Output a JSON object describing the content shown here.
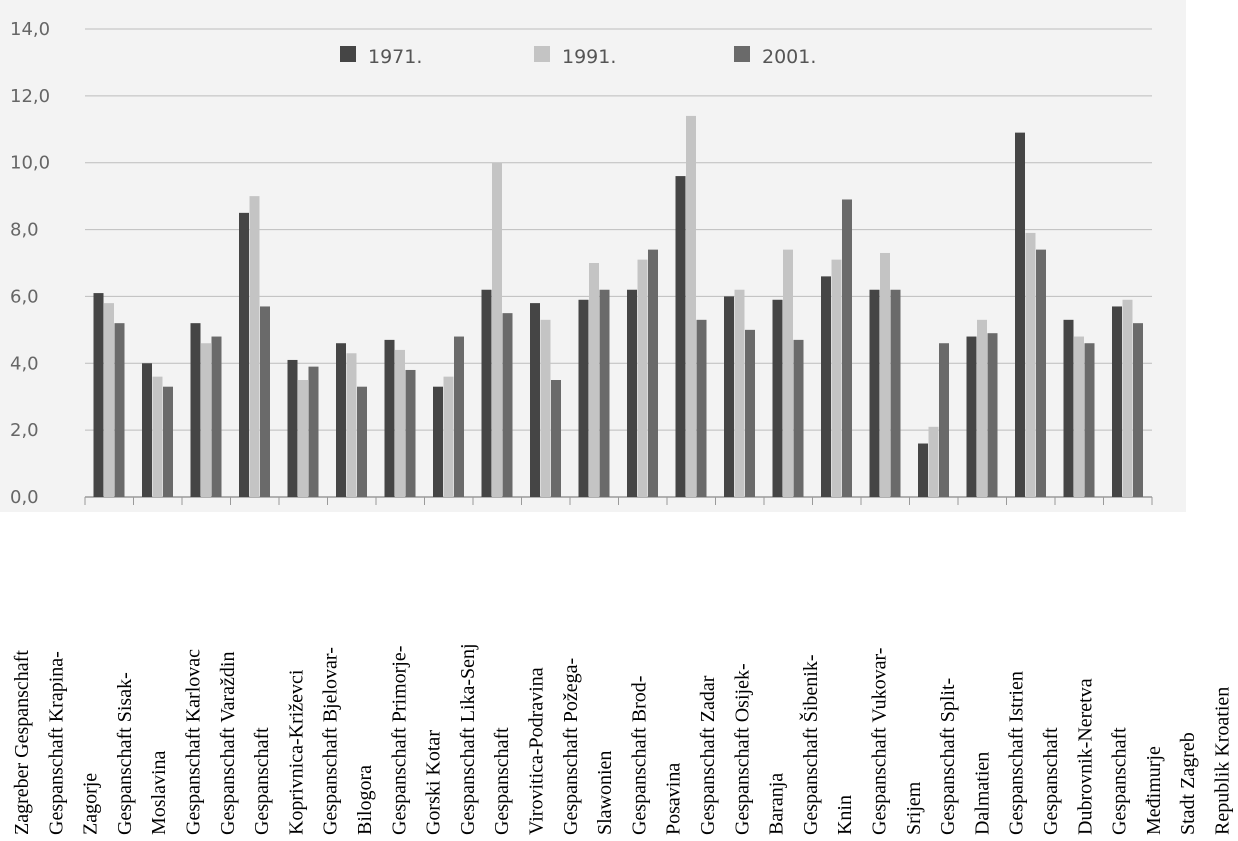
{
  "chart_data": {
    "type": "bar",
    "ylim": [
      0,
      14
    ],
    "y_ticks": [
      "0,0",
      "2,0",
      "4,0",
      "6,0",
      "8,0",
      "10,0",
      "12,0",
      "14,0"
    ],
    "grid": "horizontal",
    "legend_position": "top",
    "category_label_lines": [
      [
        "Zagreber Gespanschaft"
      ],
      [
        "Gespanschaft Krapina-",
        "Zagorje"
      ],
      [
        "Gespanschaft Sisak-",
        "Moslavina"
      ],
      [
        "Gespanschaft Karlovac"
      ],
      [
        "Gespanschaft Varaždin"
      ],
      [
        "Gespanschaft",
        "Koprivnica-Križevci"
      ],
      [
        "Gespanschaft Bjelovar-",
        "Bilogora"
      ],
      [
        "Gespanschaft Primorje-",
        "Gorski Kotar"
      ],
      [
        "Gespanschaft Lika-Senj"
      ],
      [
        "Gespanschaft",
        "Virovitica-Podravina"
      ],
      [
        "Gespanschaft Požega-",
        "Slawonien"
      ],
      [
        "Gespanschaft Brod-",
        "Posavina"
      ],
      [
        "Gespanschaft Zadar"
      ],
      [
        "Gespanschaft Osijek-",
        "Baranja"
      ],
      [
        "Gespanschaft Šibenik-",
        "Knin"
      ],
      [
        "Gespanschaft Vukovar-",
        "Srijem"
      ],
      [
        "Gespanschaft Split-",
        "Dalmatien"
      ],
      [
        "Gespanschaft Istrien"
      ],
      [
        "Gespanschaft",
        "Dubrovnik-Neretva"
      ],
      [
        "Gespanschaft",
        "Međimurje"
      ],
      [
        "Stadt Zagreb"
      ],
      [
        "Republik Kroatien"
      ]
    ],
    "series": [
      {
        "name": "1971.",
        "color": "#454545",
        "values": [
          6.1,
          4.0,
          5.2,
          8.5,
          4.1,
          4.6,
          4.7,
          3.3,
          6.2,
          5.8,
          5.9,
          6.2,
          9.6,
          6.0,
          5.9,
          6.6,
          6.2,
          1.6,
          4.8,
          10.9,
          5.3,
          5.7
        ]
      },
      {
        "name": "1991.",
        "color": "#c4c4c4",
        "values": [
          5.8,
          3.6,
          4.6,
          9.0,
          3.5,
          4.3,
          4.4,
          3.6,
          10.0,
          5.3,
          7.0,
          7.1,
          11.4,
          6.2,
          7.4,
          7.1,
          7.3,
          2.1,
          5.3,
          7.9,
          4.8,
          5.9
        ]
      },
      {
        "name": "2001.",
        "color": "#6a6a6a",
        "values": [
          5.2,
          3.3,
          4.8,
          5.7,
          3.9,
          3.3,
          3.8,
          4.8,
          5.5,
          3.5,
          6.2,
          7.4,
          5.3,
          5.0,
          4.7,
          8.9,
          6.2,
          4.6,
          4.9,
          7.4,
          4.6,
          5.2
        ]
      }
    ]
  }
}
